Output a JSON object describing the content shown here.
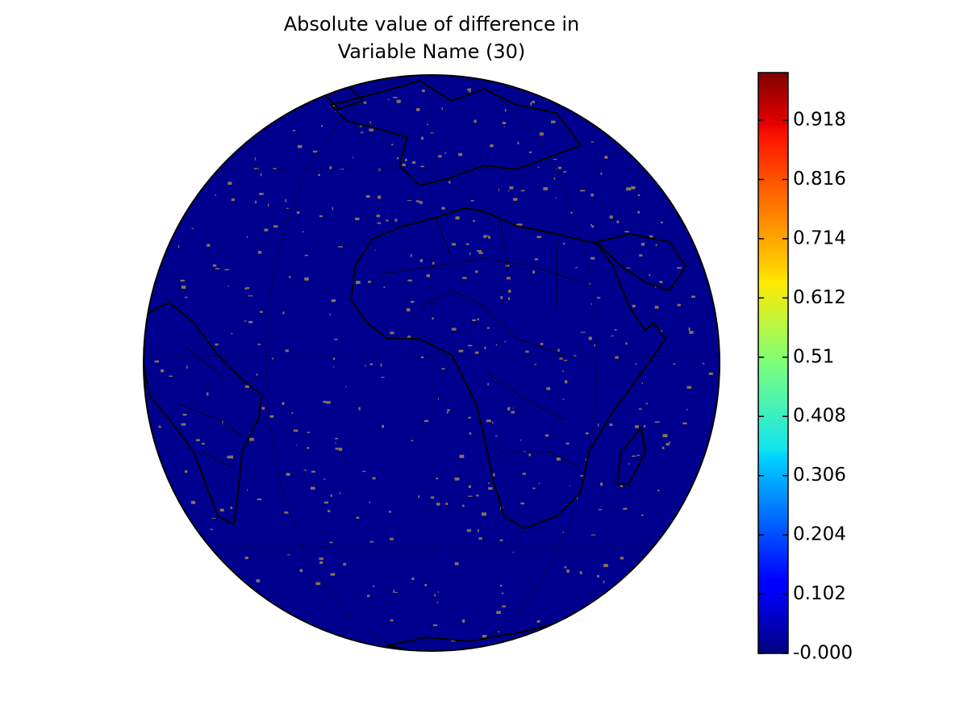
{
  "title_lines": [
    "Absolute value of difference in",
    "Variable Name (30)"
  ],
  "colorbar": {
    "colormap": "jet",
    "lim": [
      0,
      1
    ],
    "ticks": [
      {
        "value": 0,
        "label": "-0.000"
      },
      0.102,
      0.204,
      0.306,
      0.408,
      0.51,
      0.612,
      0.714,
      0.816,
      0.918
    ]
  }
}
